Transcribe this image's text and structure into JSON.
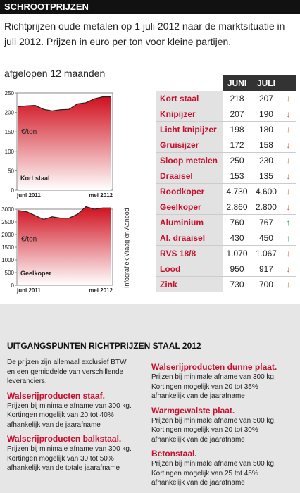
{
  "header": {
    "title": "SCHROOTPRIJZEN",
    "intro": "Richtprijzen oude metalen op 1 juli 2012 naar de marktsituatie in juli 2012. Prijzen in euro per ton voor kleine partijen."
  },
  "charts_heading": "afgelopen 12 maanden",
  "credit": "Infografiek Vraag en Aanbod",
  "chart_data": [
    {
      "type": "area",
      "series": [
        {
          "name": "Kort staal",
          "color": "#d0101e",
          "values": [
            215,
            217,
            218,
            208,
            204,
            207,
            208,
            222,
            225,
            235,
            240,
            240
          ]
        }
      ],
      "y_unit": "€/ton",
      "categories": [
        "juni 2011",
        null,
        null,
        null,
        null,
        null,
        null,
        null,
        null,
        null,
        null,
        "mei 2012"
      ],
      "ylim": [
        0,
        250
      ],
      "yticks": [
        0,
        50,
        100,
        150,
        200,
        250
      ]
    },
    {
      "type": "area",
      "series": [
        {
          "name": "Geelkoper",
          "color": "#d0101e",
          "values": [
            2950,
            2900,
            2750,
            2600,
            2700,
            2650,
            2650,
            2800,
            3100,
            3000,
            3050,
            3050
          ]
        }
      ],
      "y_unit": "€/ton",
      "categories": [
        "juni 2011",
        null,
        null,
        null,
        null,
        null,
        null,
        null,
        null,
        null,
        null,
        "mei 2012"
      ],
      "ylim": [
        0,
        3000
      ],
      "yticks": [
        0,
        500,
        1000,
        1500,
        2000,
        2500,
        3000
      ]
    }
  ],
  "table": {
    "columns": [
      "JUNI",
      "JULI"
    ],
    "rows": [
      [
        "Kort staal",
        "218",
        "207"
      ],
      [
        "Knipijzer",
        "207",
        "190"
      ],
      [
        "Licht knipijzer",
        "198",
        "180"
      ],
      [
        "Gruisijzer",
        "172",
        "158"
      ],
      [
        "Sloop metalen",
        "250",
        "230"
      ],
      [
        "Draaisel",
        "153",
        "135"
      ],
      [
        "Roodkoper",
        "4.730",
        "4.600"
      ],
      [
        "Geelkoper",
        "2.860",
        "2.800"
      ],
      [
        "Aluminium",
        "760",
        "767"
      ],
      [
        "Al. draaisel",
        "430",
        "450"
      ],
      [
        "RVS 18/8",
        "1.070",
        "1.067"
      ],
      [
        "Lood",
        "950",
        "917"
      ],
      [
        "Zink",
        "730",
        "700"
      ]
    ]
  },
  "notes": {
    "title": "UITGANGSPUNTEN RICHTPRIJZEN STAAL 2012",
    "columns": [
      [
        {
          "heading": null,
          "lines": [
            "De prijzen zijn allemaal exclusief BTW",
            "en een gemiddelde van verschillende",
            "leveranciers."
          ]
        },
        {
          "heading": "Walserijproducten staaf.",
          "lines": [
            "Prijzen bij minimale afname van 300 kg.",
            "Kortingen mogelijk van 20 tot 40%",
            "afhankelijk van de jaarafname"
          ]
        },
        {
          "heading": "Walserijproducten balkstaal.",
          "lines": [
            "Prijzen bij minimale afname van 300 kg.",
            "Kortingen mogelijk van 30 tot 50%",
            "afhankelijk van de totale jaarafname"
          ]
        }
      ],
      [
        {
          "heading": "Walserijproducten dunne plaat.",
          "lines": [
            "Prijzen bij minimale afname van 300 kg.",
            "Kortingen mogelijk van 20 tot 35%",
            "afhankelijk van de jaarafname"
          ]
        },
        {
          "heading": "Warmgewalste plaat.",
          "lines": [
            "Prijzen bij minimale afname van 500 kg.",
            "Kortingen mogelijk van 20 tot 30%",
            "afhankelijk van de jaarafname"
          ]
        },
        {
          "heading": "Betonstaal.",
          "lines": [
            "Prijzen bij minimale afname van 500 kg.",
            "Kortingen mogelijk van 25 tot 45%",
            "afhankelijk van de jaarafname"
          ]
        }
      ]
    ]
  }
}
